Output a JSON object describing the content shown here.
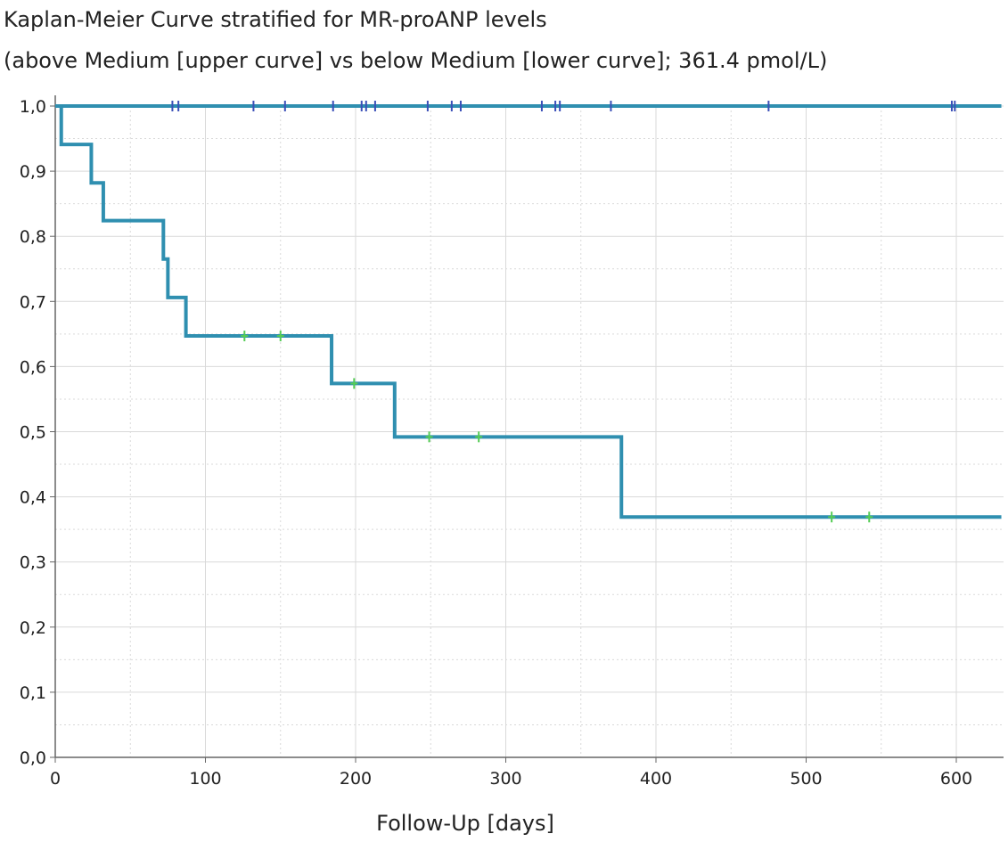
{
  "chart_data": {
    "type": "line",
    "subtype": "kaplan-meier-step",
    "title": "Kaplan-Meier Curve stratified for MR-proANP levels",
    "subtitle": "(above Medium [upper curve] vs below Medium [lower curve]; 361.4 pmol/L)",
    "xlabel": "Follow-Up [days]",
    "ylabel": "",
    "xlim": [
      0,
      630
    ],
    "ylim": [
      0,
      1.0
    ],
    "x_ticks": [
      0,
      100,
      200,
      300,
      400,
      500,
      600
    ],
    "x_tick_labels": [
      "0",
      "100",
      "200",
      "300",
      "400",
      "500",
      "600"
    ],
    "x_minor_step": 50,
    "y_ticks": [
      0,
      0.1,
      0.2,
      0.3,
      0.4,
      0.5,
      0.6,
      0.7,
      0.8,
      0.9,
      1.0
    ],
    "y_tick_labels": [
      "0,0",
      "0,1",
      "0,2",
      "0,3",
      "0,4",
      "0,5",
      "0,6",
      "0,7",
      "0,8",
      "0,9",
      "1,0"
    ],
    "y_minor_step": 0.05,
    "grid": true,
    "legend": "none",
    "colors": {
      "curve": "#2f8fb0",
      "censor_upper": "#3a4fb8",
      "censor_lower": "#55cc55",
      "grid": "#d9d9d9",
      "axis": "#666666"
    },
    "series": [
      {
        "steps": [
          [
            0,
            1.0
          ],
          [
            630,
            1.0
          ]
        ],
        "censored": [
          78,
          82,
          132,
          153,
          185,
          204,
          207,
          213,
          248,
          264,
          270,
          324,
          333,
          336,
          370,
          475,
          597,
          599
        ]
      },
      {
        "steps": [
          [
            0,
            1.0
          ],
          [
            4,
            0.941
          ],
          [
            24,
            0.882
          ],
          [
            32,
            0.824
          ],
          [
            72,
            0.765
          ],
          [
            75,
            0.706
          ],
          [
            87,
            0.647
          ],
          [
            184,
            0.574
          ],
          [
            226,
            0.492
          ],
          [
            377,
            0.369
          ],
          [
            630,
            0.369
          ]
        ],
        "censored": [
          [
            126,
            0.647
          ],
          [
            150,
            0.647
          ],
          [
            199,
            0.574
          ],
          [
            249,
            0.492
          ],
          [
            282,
            0.492
          ],
          [
            517,
            0.369
          ],
          [
            542,
            0.369
          ]
        ]
      }
    ]
  }
}
